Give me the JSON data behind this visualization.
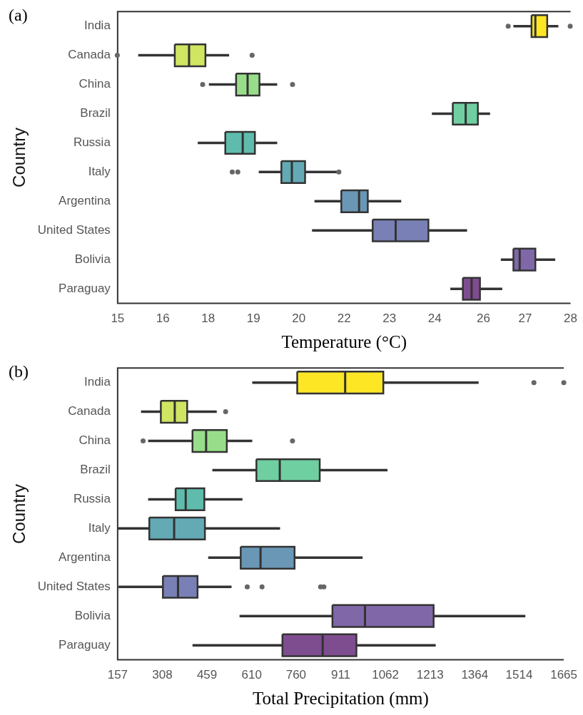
{
  "chart_data": [
    {
      "type": "box",
      "title": "(a)",
      "orientation": "horizontal",
      "xlabel": "Temperature (°C)",
      "ylabel": "Country",
      "categories": [
        "India",
        "Canada",
        "China",
        "Brazil",
        "Russia",
        "Italy",
        "Argentina",
        "United States",
        "Bolivia",
        "Paraguay"
      ],
      "colors": [
        "#fde725",
        "#d0e562",
        "#98de8a",
        "#6fcfa0",
        "#5fbcad",
        "#63aab5",
        "#6a97b5",
        "#7880b5",
        "#7f67a8",
        "#7e4d8f"
      ],
      "boxes": [
        {
          "low": 26.36,
          "q1": 26.88,
          "median": 26.99,
          "q3": 27.33,
          "high": 27.65,
          "outliers": [
            26.21,
            27.99
          ]
        },
        {
          "low": 15.59,
          "q1": 16.64,
          "median": 17.05,
          "q3": 17.52,
          "high": 18.2,
          "outliers": [
            14.99,
            18.86
          ]
        },
        {
          "low": 17.62,
          "q1": 18.4,
          "median": 18.73,
          "q3": 19.07,
          "high": 19.58,
          "outliers": [
            17.44,
            20.02
          ]
        },
        {
          "low": 24.02,
          "q1": 24.62,
          "median": 24.99,
          "q3": 25.34,
          "high": 25.69
        },
        {
          "low": 17.3,
          "q1": 18.09,
          "median": 18.59,
          "q3": 18.94,
          "high": 19.58
        },
        {
          "low": 19.05,
          "q1": 19.7,
          "median": 20.0,
          "q3": 20.38,
          "high": 21.39,
          "outliers": [
            18.29,
            18.45,
            21.35
          ]
        },
        {
          "low": 20.65,
          "q1": 21.42,
          "median": 21.93,
          "q3": 22.18,
          "high": 23.14
        },
        {
          "low": 20.58,
          "q1": 22.32,
          "median": 22.98,
          "q3": 23.92,
          "high": 25.03
        },
        {
          "low": 26.0,
          "q1": 26.36,
          "median": 26.54,
          "q3": 26.99,
          "high": 27.56
        },
        {
          "low": 24.55,
          "q1": 24.91,
          "median": 25.16,
          "q3": 25.4,
          "high": 26.04
        }
      ],
      "xlim": [
        15,
        28
      ],
      "xticks": [
        15,
        {
          "value": 16.3,
          "label": "16"
        },
        {
          "value": 17.6,
          "label": "18"
        },
        {
          "value": 18.9,
          "label": "19"
        },
        {
          "value": 20.2,
          "label": "20"
        },
        {
          "value": 21.5,
          "label": "22"
        },
        {
          "value": 22.8,
          "label": "23"
        },
        {
          "value": 24.1,
          "label": "24"
        },
        {
          "value": 25.5,
          "label": "26"
        },
        {
          "value": 26.7,
          "label": "27"
        },
        28
      ]
    },
    {
      "type": "box",
      "title": "(b)",
      "orientation": "horizontal",
      "xlabel": "Total Precipitation (mm)",
      "ylabel": "Country",
      "categories": [
        "India",
        "Canada",
        "China",
        "Brazil",
        "Russia",
        "Italy",
        "Argentina",
        "United States",
        "Bolivia",
        "Paraguay"
      ],
      "colors": [
        "#fde725",
        "#d0e562",
        "#98de8a",
        "#6fcfa0",
        "#5fbcad",
        "#63aab5",
        "#6a97b5",
        "#7880b5",
        "#7f67a8",
        "#7e4d8f"
      ],
      "boxes": [
        {
          "low": 612,
          "q1": 764,
          "median": 926,
          "q3": 1055,
          "high": 1377,
          "outliers": [
            1564,
            1665
          ]
        },
        {
          "low": 236,
          "q1": 303,
          "median": 350,
          "q3": 392,
          "high": 492,
          "outliers": [
            522
          ]
        },
        {
          "low": 260,
          "q1": 410,
          "median": 456,
          "q3": 526,
          "high": 612,
          "outliers": [
            243,
            748
          ]
        },
        {
          "low": 477,
          "q1": 626,
          "median": 705,
          "q3": 840,
          "high": 1069
        },
        {
          "low": 260,
          "q1": 353,
          "median": 387,
          "q3": 450,
          "high": 579
        },
        {
          "low": 157,
          "q1": 264,
          "median": 348,
          "q3": 452,
          "high": 706
        },
        {
          "low": 463,
          "q1": 573,
          "median": 640,
          "q3": 755,
          "high": 985
        },
        {
          "low": 160,
          "q1": 310,
          "median": 361,
          "q3": 427,
          "high": 542,
          "outliers": [
            595,
            645,
            843,
            854
          ]
        },
        {
          "low": 569,
          "q1": 883,
          "median": 993,
          "q3": 1225,
          "high": 1535
        },
        {
          "low": 410,
          "q1": 714,
          "median": 850,
          "q3": 964,
          "high": 1232
        }
      ],
      "xlim": [
        157,
        1665
      ],
      "xticks": [
        157,
        308,
        459,
        610,
        760,
        911,
        1062,
        1213,
        1364,
        1514,
        1665
      ]
    }
  ]
}
